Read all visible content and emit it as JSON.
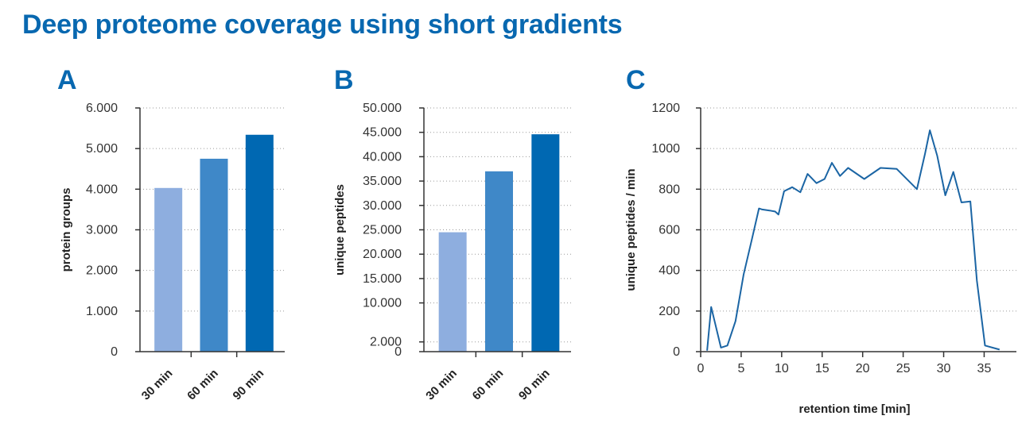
{
  "header": {
    "title": "Deep proteome coverage using short gradients"
  },
  "panels": [
    "A",
    "B",
    "C"
  ],
  "colors": {
    "title": "#0868b0",
    "bar_30": "#8eaedf",
    "bar_60": "#3f88c8",
    "bar_90": "#0068b2",
    "line": "#1b65a4"
  },
  "chart_data": [
    {
      "panel": "A",
      "type": "bar",
      "categories": [
        "30 min",
        "60 min",
        "90 min"
      ],
      "values": [
        4030,
        4750,
        5340
      ],
      "ylabel": "protein groups",
      "ylim": [
        0,
        6000
      ],
      "yticks": [
        0,
        1000,
        2000,
        3000,
        4000,
        5000,
        6000
      ],
      "ytick_labels": [
        "0",
        "1.000",
        "2.000",
        "3.000",
        "4.000",
        "5.000",
        "6.000"
      ],
      "grid": "horizontal dotted"
    },
    {
      "panel": "B",
      "type": "bar",
      "categories": [
        "30 min",
        "60 min",
        "90 min"
      ],
      "values": [
        24500,
        37000,
        44600
      ],
      "ylabel": "unique peptides",
      "ylim": [
        0,
        50000
      ],
      "yticks": [
        0,
        2000,
        10000,
        15000,
        20000,
        25000,
        30000,
        35000,
        40000,
        45000,
        50000
      ],
      "ytick_labels": [
        "0",
        "2.000",
        "10.000",
        "15.000",
        "20.000",
        "25.000",
        "30.000",
        "35.000",
        "40.000",
        "45.000",
        "50.000"
      ],
      "grid": "horizontal dotted"
    },
    {
      "panel": "C",
      "type": "line",
      "xlabel": "retention time [min]",
      "ylabel": "unique peptides / min",
      "xlim": [
        0,
        38
      ],
      "ylim": [
        0,
        1200
      ],
      "xticks": [
        0,
        5,
        10,
        15,
        20,
        25,
        30,
        35
      ],
      "yticks": [
        0,
        200,
        400,
        600,
        800,
        1000,
        1200
      ],
      "grid": "horizontal dotted",
      "x": [
        0.8,
        1.3,
        2.5,
        3.3,
        4.3,
        5.3,
        6.3,
        7.2,
        7.6,
        8.5,
        9.2,
        9.6,
        10.3,
        11.3,
        12.3,
        13.2,
        14.3,
        15.3,
        16.2,
        17.2,
        18.2,
        20.2,
        22.2,
        24.2,
        26.7,
        27.7,
        28.3,
        29.2,
        30.2,
        31.2,
        32.2,
        33.3,
        34.1,
        35.1,
        36.9
      ],
      "y": [
        5,
        220,
        20,
        30,
        150,
        380,
        550,
        705,
        700,
        695,
        690,
        675,
        790,
        810,
        785,
        875,
        830,
        850,
        930,
        865,
        905,
        850,
        905,
        900,
        800,
        975,
        1090,
        965,
        770,
        885,
        735,
        740,
        350,
        30,
        10
      ]
    }
  ]
}
